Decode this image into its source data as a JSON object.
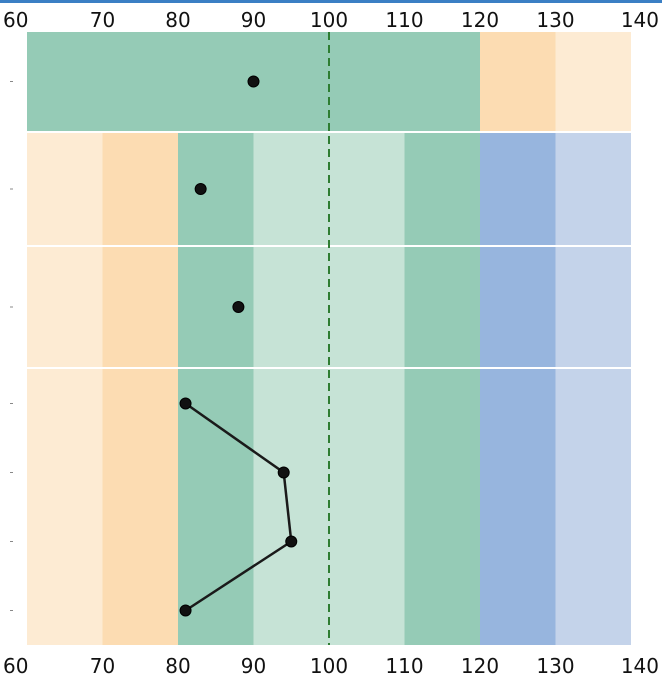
{
  "chart_data": {
    "type": "scatter",
    "title": "",
    "xlabel": "",
    "ylabel": "",
    "xlim": [
      60,
      140
    ],
    "x_ticks": [
      60,
      70,
      80,
      90,
      100,
      110,
      120,
      130,
      140
    ],
    "x_tick_labels": [
      "60",
      "70",
      "80",
      "90",
      "100",
      "110",
      "120",
      "130",
      "140"
    ],
    "x_ticks_top_and_bottom": true,
    "reference_line": {
      "x": 100,
      "style": "dashed",
      "color": "#2e7d32"
    },
    "band_colors": {
      "light_orange": "#fdebd3",
      "orange": "#fcdcb2",
      "green": "#95cbb6",
      "light_green": "#c6e3d6",
      "blue": "#97b5de",
      "light_blue": "#c4d3ea"
    },
    "panels": [
      {
        "rows": 1,
        "bands": [
          {
            "from": 60,
            "to": 120,
            "color": "green"
          },
          {
            "from": 120,
            "to": 130,
            "color": "orange"
          },
          {
            "from": 130,
            "to": 140,
            "color": "light_orange"
          }
        ],
        "points": [
          90
        ],
        "connected": false
      },
      {
        "rows": 1,
        "bands": [
          {
            "from": 60,
            "to": 70,
            "color": "light_orange"
          },
          {
            "from": 70,
            "to": 80,
            "color": "orange"
          },
          {
            "from": 80,
            "to": 90,
            "color": "green"
          },
          {
            "from": 90,
            "to": 110,
            "color": "light_green"
          },
          {
            "from": 110,
            "to": 120,
            "color": "green"
          },
          {
            "from": 120,
            "to": 130,
            "color": "blue"
          },
          {
            "from": 130,
            "to": 140,
            "color": "light_blue"
          }
        ],
        "points": [
          83
        ],
        "connected": false
      },
      {
        "rows": 1,
        "bands": [
          {
            "from": 60,
            "to": 70,
            "color": "light_orange"
          },
          {
            "from": 70,
            "to": 80,
            "color": "orange"
          },
          {
            "from": 80,
            "to": 90,
            "color": "green"
          },
          {
            "from": 90,
            "to": 110,
            "color": "light_green"
          },
          {
            "from": 110,
            "to": 120,
            "color": "green"
          },
          {
            "from": 120,
            "to": 130,
            "color": "blue"
          },
          {
            "from": 130,
            "to": 140,
            "color": "light_blue"
          }
        ],
        "points": [
          88
        ],
        "connected": false
      },
      {
        "rows": 4,
        "bands": [
          {
            "from": 60,
            "to": 70,
            "color": "light_orange"
          },
          {
            "from": 70,
            "to": 80,
            "color": "orange"
          },
          {
            "from": 80,
            "to": 90,
            "color": "green"
          },
          {
            "from": 90,
            "to": 110,
            "color": "light_green"
          },
          {
            "from": 110,
            "to": 120,
            "color": "green"
          },
          {
            "from": 120,
            "to": 130,
            "color": "blue"
          },
          {
            "from": 130,
            "to": 140,
            "color": "light_blue"
          }
        ],
        "points": [
          81,
          94,
          95,
          81
        ],
        "connected": true
      }
    ]
  }
}
